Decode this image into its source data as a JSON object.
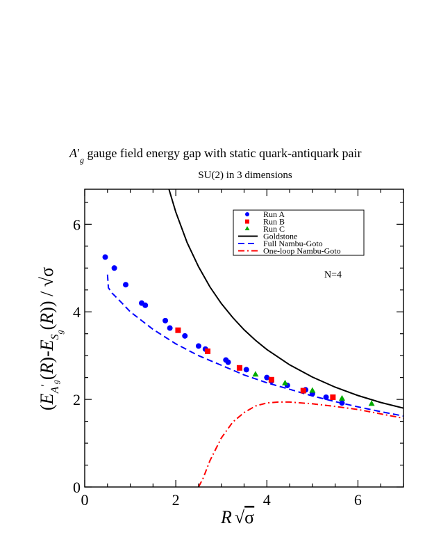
{
  "chart_data": {
    "type": "scatter",
    "title_prefix": "A",
    "title_prime": "′",
    "title_sub": "g",
    "title_rest": " gauge field energy gap with static quark-antiquark pair",
    "subtitle": "SU(2) in 3 dimensions",
    "annotation": "N=4",
    "xlabel": "R √σ",
    "ylabel": "(E_A'g(R) - E_Sg(R)) / √σ",
    "xlim": [
      0,
      7
    ],
    "ylim": [
      0,
      6.8
    ],
    "x_ticks": [
      0,
      2,
      4,
      6
    ],
    "y_ticks": [
      0,
      2,
      4,
      6
    ],
    "grid": false,
    "legend_position": "top-right",
    "series": [
      {
        "name": "Run A",
        "kind": "points",
        "marker": "circle",
        "color": "#0000ff",
        "x": [
          0.45,
          0.65,
          0.9,
          1.25,
          1.33,
          1.77,
          1.87,
          2.2,
          2.5,
          2.65,
          3.1,
          3.15,
          3.55,
          4.0,
          4.1,
          4.45,
          4.85,
          5.0,
          5.3,
          5.65
        ],
        "y": [
          5.25,
          5.0,
          4.62,
          4.2,
          4.15,
          3.8,
          3.63,
          3.45,
          3.22,
          3.15,
          2.9,
          2.85,
          2.68,
          2.5,
          2.42,
          2.32,
          2.22,
          2.13,
          2.05,
          1.92
        ]
      },
      {
        "name": "Run B",
        "kind": "points",
        "marker": "square",
        "color": "#ff0000",
        "x": [
          2.05,
          2.7,
          3.4,
          4.1,
          4.8,
          5.45
        ],
        "y": [
          3.58,
          3.1,
          2.72,
          2.45,
          2.2,
          2.05
        ]
      },
      {
        "name": "Run C",
        "kind": "points",
        "marker": "triangle",
        "color": "#00aa00",
        "x": [
          3.75,
          4.4,
          5.0,
          5.65,
          6.3
        ],
        "y": [
          2.57,
          2.37,
          2.2,
          2.02,
          1.9
        ]
      },
      {
        "name": "Goldstone",
        "kind": "line",
        "dash": "solid",
        "color": "#000000",
        "x": [
          1.85,
          2.0,
          2.25,
          2.5,
          2.75,
          3.0,
          3.25,
          3.5,
          3.75,
          4.0,
          4.5,
          5.0,
          5.5,
          6.0,
          6.5,
          7.0
        ],
        "y": [
          6.8,
          6.28,
          5.58,
          5.03,
          4.57,
          4.19,
          3.87,
          3.59,
          3.35,
          3.14,
          2.79,
          2.51,
          2.28,
          2.09,
          1.93,
          1.8
        ]
      },
      {
        "name": "Full Nambu-Goto",
        "kind": "line",
        "dash": "dashed",
        "color": "#0000ff",
        "x": [
          0.5,
          0.52,
          0.6,
          0.8,
          1.0,
          1.5,
          2.0,
          2.5,
          3.0,
          3.5,
          4.0,
          4.5,
          5.0,
          5.5,
          6.0,
          6.5,
          7.0
        ],
        "y": [
          4.85,
          4.55,
          4.43,
          4.22,
          4.0,
          3.6,
          3.27,
          3.0,
          2.78,
          2.56,
          2.38,
          2.23,
          2.08,
          1.95,
          1.83,
          1.72,
          1.62
        ]
      },
      {
        "name": "One-loop Nambu-Goto",
        "kind": "line",
        "dash": "dashdot",
        "color": "#ff0000",
        "x": [
          2.5,
          2.6,
          2.75,
          3.0,
          3.25,
          3.5,
          3.75,
          4.0,
          4.25,
          4.5,
          5.0,
          5.5,
          6.0,
          6.5,
          7.0
        ],
        "y": [
          0.0,
          0.2,
          0.6,
          1.12,
          1.48,
          1.7,
          1.85,
          1.92,
          1.94,
          1.94,
          1.9,
          1.84,
          1.77,
          1.67,
          1.57
        ]
      }
    ]
  }
}
